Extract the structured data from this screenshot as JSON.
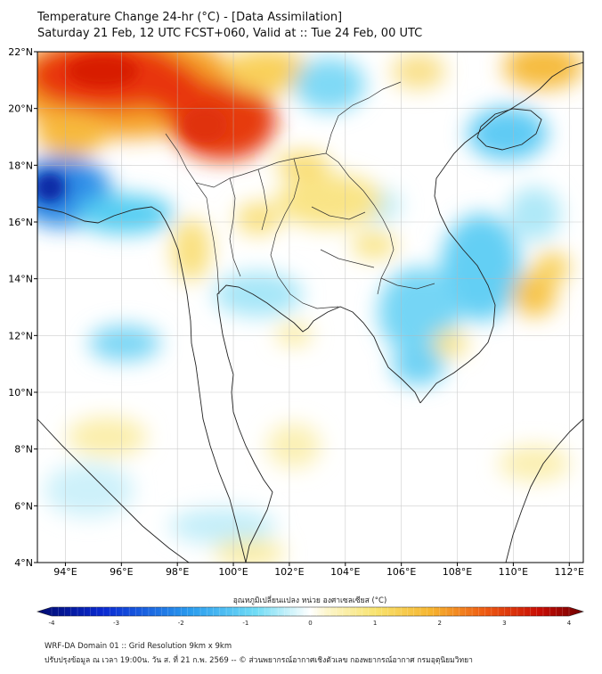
{
  "header": {
    "title_line1": "Temperature Change 24-hr (°C) - [Data Assimilation]",
    "title_line2": "Saturday 21 Feb, 12 UTC FCST+060, Valid at :: Tue 24 Feb, 00 UTC"
  },
  "map": {
    "lat_labels": [
      "22°N",
      "20°N",
      "18°N",
      "16°N",
      "14°N",
      "12°N",
      "10°N",
      "8°N",
      "6°N",
      "4°N"
    ],
    "lon_labels": [
      "94°E",
      "96°E",
      "98°E",
      "100°E",
      "102°E",
      "104°E",
      "106°E",
      "108°E",
      "110°E",
      "112°E"
    ],
    "lat_range": [
      4,
      22
    ],
    "lon_range": [
      93,
      112.5
    ],
    "gridlines": true
  },
  "colorbar": {
    "label": "อุณหภูมิเปลี่ยนแปลง หน่วย องศาเซลเซียส (°C)",
    "ticks": [
      "-4",
      "-3",
      "-2",
      "-1",
      "0",
      "1",
      "2",
      "3",
      "4"
    ],
    "range": [
      -4,
      4
    ]
  },
  "footer": {
    "line1": "WRF-DA Domain 01 :: Grid Resolution 9km x 9km",
    "line2": "ปรับปรุงข้อมูล ณ เวลา 19:00น. วัน ส. ที่ 21 ก.พ. 2569 -- © ส่วนพยากรณ์อากาศเชิงตัวเลข กองพยากรณ์อากาศ กรมอุตุนิยมวิทยา"
  },
  "colors": {
    "hot": "#d81e05",
    "warm": "#f8e07a",
    "cool": "#40c0f0",
    "cold": "#0040b0",
    "neutral": "#ffffff"
  }
}
